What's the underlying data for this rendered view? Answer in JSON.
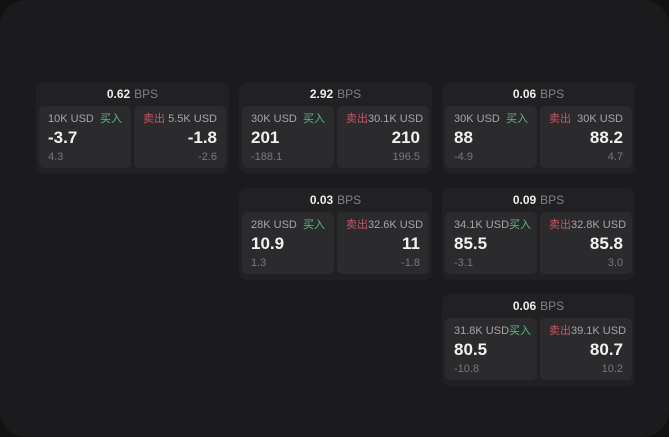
{
  "colors": {
    "buy_green": "#5cba82",
    "sell_red": "#c75566",
    "panel_bg": "#1b1b1d",
    "card_bg": "#212123",
    "cell_bg": "#2b2b2d"
  },
  "cards": [
    {
      "bps": {
        "value": "0.62",
        "unit": "BPS"
      },
      "buy": {
        "amount": "10K USD",
        "label": "买入",
        "price": "-3.7",
        "sub": "4.3"
      },
      "sell": {
        "label": "卖出",
        "amount": "5.5K USD",
        "price": "-1.8",
        "sub": "-2.6"
      }
    },
    {
      "bps": {
        "value": "2.92",
        "unit": "BPS"
      },
      "buy": {
        "amount": "30K USD",
        "label": "买入",
        "price": "201",
        "sub": "-188.1"
      },
      "sell": {
        "label": "卖出",
        "amount": "30.1K USD",
        "price": "210",
        "sub": "196.5"
      }
    },
    {
      "bps": {
        "value": "0.06",
        "unit": "BPS"
      },
      "buy": {
        "amount": "30K USD",
        "label": "买入",
        "price": "88",
        "sub": "-4.9"
      },
      "sell": {
        "label": "卖出",
        "amount": "30K USD",
        "price": "88.2",
        "sub": "4.7"
      }
    },
    {
      "bps": {
        "value": "0.03",
        "unit": "BPS"
      },
      "buy": {
        "amount": "28K USD",
        "label": "买入",
        "price": "10.9",
        "sub": "1.3"
      },
      "sell": {
        "label": "卖出",
        "amount": "32.6K USD",
        "price": "11",
        "sub": "-1.8"
      }
    },
    {
      "bps": {
        "value": "0.09",
        "unit": "BPS"
      },
      "buy": {
        "amount": "34.1K USD",
        "label": "买入",
        "price": "85.5",
        "sub": "-3.1"
      },
      "sell": {
        "label": "卖出",
        "amount": "32.8K USD",
        "price": "85.8",
        "sub": "3.0"
      }
    },
    {
      "bps": {
        "value": "0.06",
        "unit": "BPS"
      },
      "buy": {
        "amount": "31.8K USD",
        "label": "买入",
        "price": "80.5",
        "sub": "-10.8"
      },
      "sell": {
        "label": "卖出",
        "amount": "39.1K USD",
        "price": "80.7",
        "sub": "10.2"
      }
    }
  ]
}
